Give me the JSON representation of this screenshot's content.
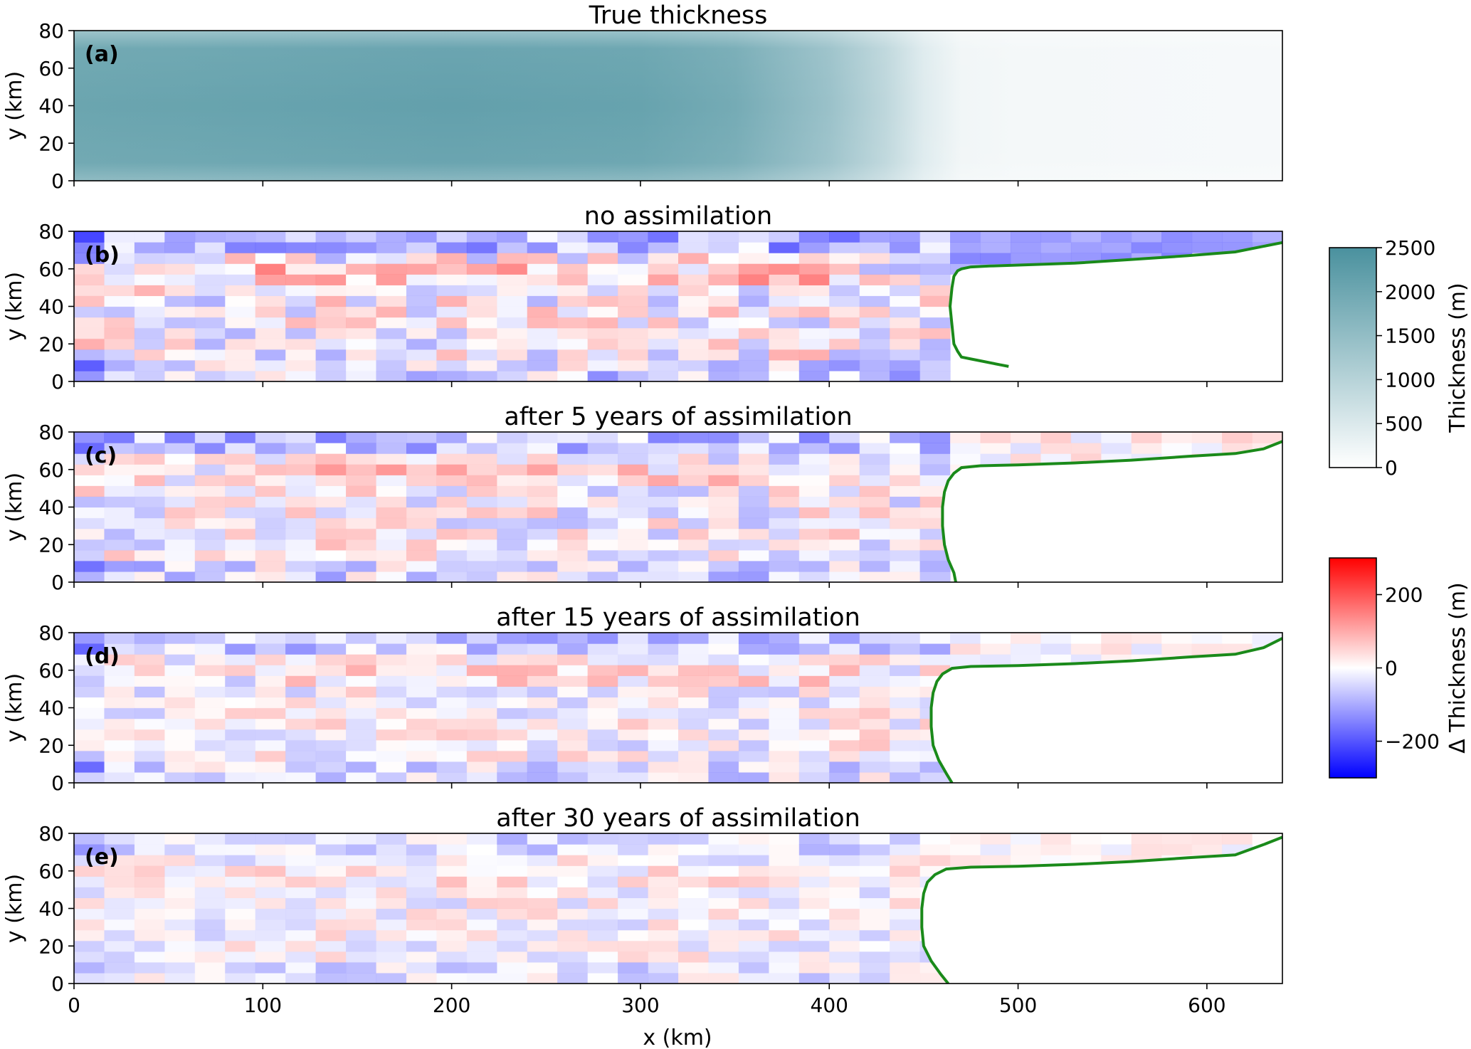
{
  "chart_data": {
    "type": "heatmap",
    "xlabel": "x (km)",
    "xlim": [
      0,
      640
    ],
    "x_ticks": [
      0,
      100,
      200,
      300,
      400,
      500,
      600
    ],
    "ylim": [
      0,
      80
    ],
    "y_ticks": [
      0,
      20,
      40,
      60,
      80
    ],
    "panels": [
      {
        "label": "(a)",
        "title": "True thickness",
        "ylabel": "y (km)",
        "field": "thickness",
        "colormap": "white-to-teal",
        "profile_x": [
          0,
          100,
          200,
          300,
          350,
          400,
          430,
          450,
          470,
          500,
          640
        ],
        "profile_thickness_m": [
          2050,
          2100,
          2150,
          2100,
          1900,
          1400,
          900,
          450,
          200,
          150,
          130
        ]
      },
      {
        "label": "(b)",
        "title": "no assimilation",
        "ylabel": "y (km)",
        "field": "delta_thickness",
        "grounding_line": {
          "x": [
            495,
            490,
            480,
            475,
            470,
            468,
            466,
            465,
            464,
            465,
            466,
            468,
            470,
            475,
            485,
            500,
            530,
            560,
            590,
            615,
            630,
            640
          ],
          "y": [
            8,
            9,
            11,
            12,
            13,
            16,
            20,
            30,
            40,
            50,
            56,
            59,
            60,
            61,
            61.5,
            62,
            63,
            65,
            67,
            69,
            72,
            74
          ]
        }
      },
      {
        "label": "(c)",
        "title": "after 5 years of assimilation",
        "ylabel": "y (km)",
        "field": "delta_thickness",
        "grounding_line": {
          "x": [
            467,
            466,
            463,
            461,
            460,
            460,
            461,
            463,
            466,
            470,
            480,
            500,
            530,
            560,
            590,
            615,
            630,
            640
          ],
          "y": [
            0,
            5,
            12,
            20,
            30,
            40,
            48,
            54,
            58,
            61,
            62,
            62.5,
            63.5,
            65,
            67,
            68.5,
            71,
            75
          ]
        }
      },
      {
        "label": "(d)",
        "title": "after 15 years of assimilation",
        "ylabel": "y (km)",
        "field": "delta_thickness",
        "grounding_line": {
          "x": [
            465,
            462,
            458,
            455,
            454,
            454,
            455,
            457,
            460,
            465,
            475,
            500,
            530,
            560,
            590,
            615,
            630,
            640
          ],
          "y": [
            0,
            5,
            12,
            20,
            30,
            40,
            48,
            54,
            58,
            61,
            62,
            62.5,
            63.5,
            65,
            67,
            68.5,
            72,
            77
          ]
        }
      },
      {
        "label": "(e)",
        "title": "after 30 years of assimilation",
        "ylabel": "y (km)",
        "field": "delta_thickness",
        "grounding_line": {
          "x": [
            463,
            459,
            454,
            450,
            449,
            449,
            450,
            452,
            456,
            462,
            475,
            500,
            530,
            560,
            590,
            615,
            630,
            640
          ],
          "y": [
            0,
            5,
            12,
            20,
            30,
            40,
            48,
            54,
            58,
            61,
            62,
            62.5,
            63.5,
            65,
            67,
            68.5,
            74,
            78
          ]
        }
      }
    ],
    "colorbars": [
      {
        "label": "Thickness (m)",
        "ticks": [
          0,
          500,
          1000,
          1500,
          2000,
          2500
        ],
        "range": [
          0,
          2500
        ],
        "colors": [
          "#ffffff",
          "#4a919e"
        ]
      },
      {
        "label": "Δ Thickness (m)",
        "ticks": [
          -200,
          0,
          200
        ],
        "tick_labels": [
          "−200",
          "0",
          "200"
        ],
        "range": [
          -300,
          300
        ],
        "colors": [
          "#0000ff",
          "#ffffff",
          "#ff0000"
        ]
      }
    ],
    "grounding_line_color": "#1a8a1a"
  }
}
